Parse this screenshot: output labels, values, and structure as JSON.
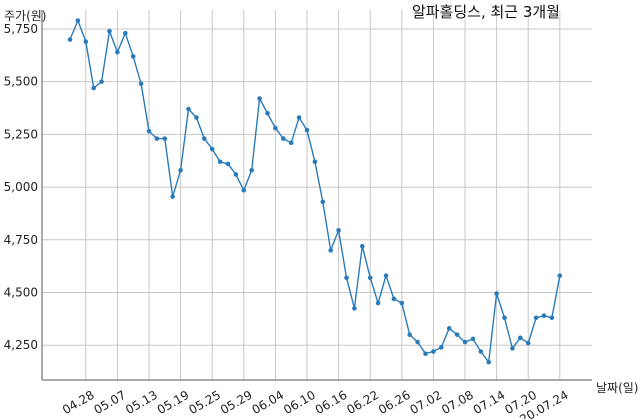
{
  "chart_data": {
    "type": "line",
    "title": "알파홀딩스, 최근 3개월",
    "ylabel": "주가(원)",
    "xlabel": "날짜(일)",
    "ylim": [
      4085,
      5840
    ],
    "yticks": [
      4250,
      4500,
      4750,
      5000,
      5250,
      5500,
      5750
    ],
    "ytick_labels": [
      "4,250",
      "4,500",
      "4,750",
      "5,000",
      "5,250",
      "5,500",
      "5,750"
    ],
    "xticks": [
      {
        "index": 2,
        "label": "04.28"
      },
      {
        "index": 6,
        "label": "05.07"
      },
      {
        "index": 10,
        "label": "05.13"
      },
      {
        "index": 14,
        "label": "05.19"
      },
      {
        "index": 18,
        "label": "05.25"
      },
      {
        "index": 22,
        "label": "05.29"
      },
      {
        "index": 26,
        "label": "06.04"
      },
      {
        "index": 30,
        "label": "06.10"
      },
      {
        "index": 34,
        "label": "06.16"
      },
      {
        "index": 38,
        "label": "06.22"
      },
      {
        "index": 42,
        "label": "06.26"
      },
      {
        "index": 46,
        "label": "07.02"
      },
      {
        "index": 50,
        "label": "07.08"
      },
      {
        "index": 54,
        "label": "07.14"
      },
      {
        "index": 58,
        "label": "07.20"
      },
      {
        "index": 62,
        "label": "20.07.24"
      }
    ],
    "grid": true,
    "series": [
      {
        "color": "#2b7bba",
        "values": [
          5700,
          5790,
          5690,
          5470,
          5500,
          5740,
          5640,
          5730,
          5620,
          5490,
          5265,
          5230,
          5230,
          4955,
          5080,
          5370,
          5330,
          5230,
          5180,
          5120,
          5110,
          5060,
          4985,
          5080,
          5420,
          5350,
          5280,
          5230,
          5210,
          5330,
          5270,
          5120,
          4930,
          4700,
          4795,
          4570,
          4425,
          4720,
          4570,
          4450,
          4580,
          4470,
          4450,
          4300,
          4265,
          4210,
          4220,
          4240,
          4330,
          4300,
          4265,
          4280,
          4220,
          4170,
          4495,
          4380,
          4235,
          4285,
          4260,
          4380,
          4390,
          4380,
          4580
        ]
      }
    ]
  }
}
